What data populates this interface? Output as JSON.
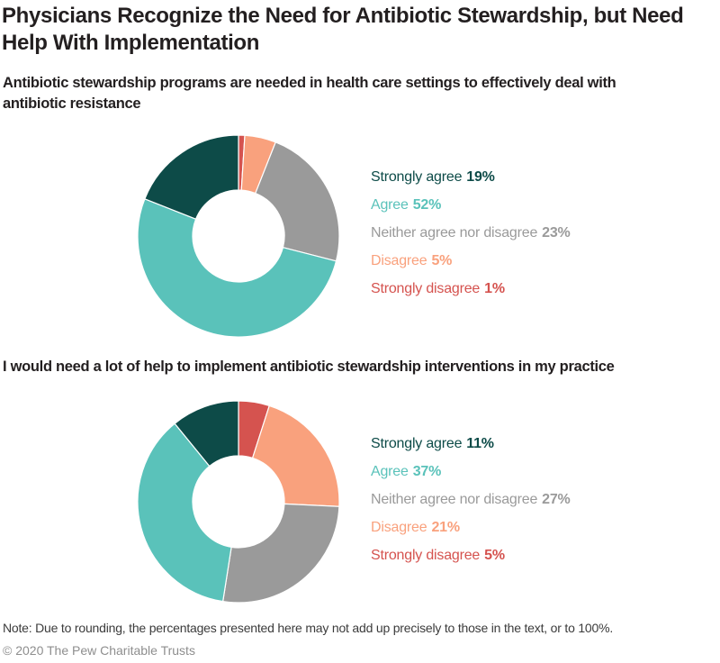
{
  "page": {
    "title": "Physicians Recognize the Need for Antibiotic Stewardship, but Need\nHelp With Implementation",
    "note": "Note: Due to rounding, the percentages presented here may not add up precisely to those in the text, or to 100%.",
    "copyright": "© 2020 The Pew Charitable Trusts"
  },
  "colors": {
    "strongly_agree": "#0d4b48",
    "agree": "#5ac2ba",
    "neither_agree_nor_disagree": "#9a9a9a",
    "disagree": "#f9a17d",
    "strongly_disagree": "#d5534f",
    "heading_text": "#231f20",
    "note_text": "#3b3b3b",
    "copyright_text": "#8e8e8e",
    "segment_divider": "#ffffff"
  },
  "chart_data": [
    {
      "type": "pie",
      "subtype": "donut",
      "title": "Antibiotic stewardship programs are needed in health care settings to effectively deal with\nantibiotic resistance",
      "categories": [
        "Strongly agree",
        "Agree",
        "Neither agree nor disagree",
        "Disagree",
        "Strongly disagree"
      ],
      "values": [
        19,
        52,
        23,
        5,
        1
      ],
      "unit": "%",
      "colors": [
        "#0d4b48",
        "#5ac2ba",
        "#9a9a9a",
        "#f9a17d",
        "#d5534f"
      ],
      "legend_position": "right",
      "start_angle": "top",
      "direction": "counterclockwise-in-legend-order"
    },
    {
      "type": "pie",
      "subtype": "donut",
      "title": "I would need a lot of help to implement antibiotic stewardship interventions in my practice",
      "categories": [
        "Strongly agree",
        "Agree",
        "Neither agree nor disagree",
        "Disagree",
        "Strongly disagree"
      ],
      "values": [
        11,
        37,
        27,
        21,
        5
      ],
      "unit": "%",
      "colors": [
        "#0d4b48",
        "#5ac2ba",
        "#9a9a9a",
        "#f9a17d",
        "#d5534f"
      ],
      "legend_position": "right",
      "start_angle": "top",
      "direction": "counterclockwise-in-legend-order"
    }
  ]
}
